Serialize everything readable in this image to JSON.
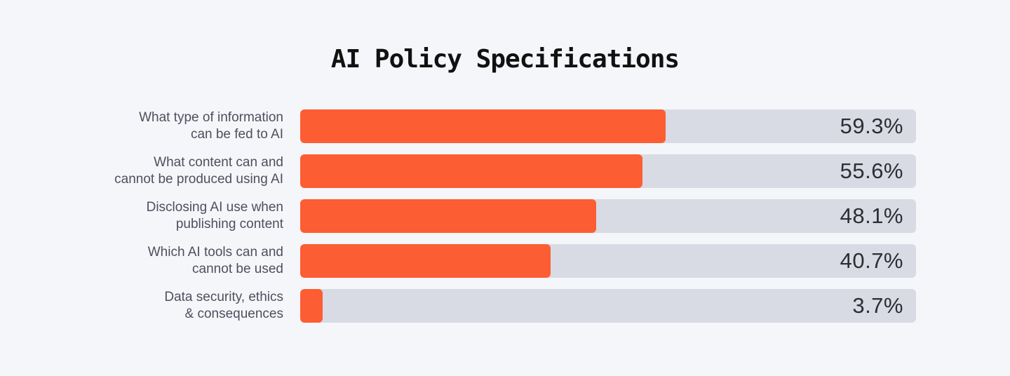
{
  "chart_data": {
    "type": "bar",
    "orientation": "horizontal",
    "title": "AI Policy Specifications",
    "categories": [
      "What type of information\ncan be fed to AI",
      "What content can and\ncannot be produced using AI",
      "Disclosing AI use when\npublishing content",
      "Which AI tools can and\ncannot be used",
      "Data security, ethics\n& consequences"
    ],
    "values": [
      59.3,
      55.6,
      48.1,
      40.7,
      3.7
    ],
    "value_labels": [
      "59.3%",
      "55.6%",
      "48.1%",
      "40.7%",
      "3.7%"
    ],
    "xlim": [
      0,
      100
    ],
    "unit": "%",
    "grid": false,
    "legend": "none"
  },
  "colors": {
    "bar": "#fd5d33",
    "track": "#d9dbe4",
    "background": "#f5f6fa",
    "title": "#111111",
    "label": "#4f4f5e",
    "value": "#2d2d35"
  }
}
